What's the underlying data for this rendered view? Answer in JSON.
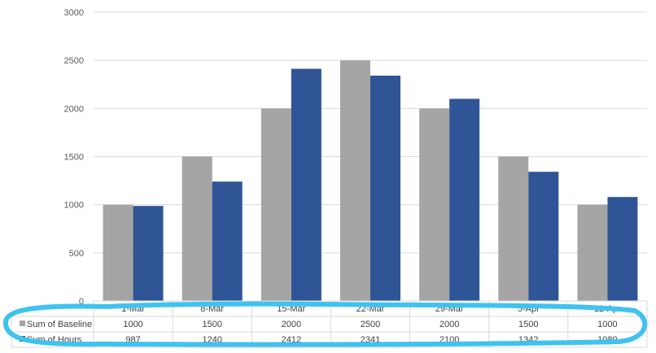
{
  "chart_data": {
    "type": "bar",
    "categories": [
      "1-Mar",
      "8-Mar",
      "15-Mar",
      "22-Mar",
      "29-Mar",
      "5-Apr",
      "12-Apr"
    ],
    "series": [
      {
        "name": "Sum of Baseline",
        "color": "#a5a5a5",
        "values": [
          1000,
          1500,
          2000,
          2500,
          2000,
          1500,
          1000
        ]
      },
      {
        "name": "Sum of Hours",
        "color": "#2f5597",
        "values": [
          987,
          1240,
          2412,
          2341,
          2100,
          1342,
          1080
        ]
      }
    ],
    "yticks": [
      "0",
      "500",
      "1000",
      "1500",
      "2000",
      "2500",
      "3000"
    ],
    "ylim": [
      0,
      3000
    ],
    "grid": true,
    "legend": "data table",
    "title": "",
    "xlabel": "",
    "ylabel": ""
  },
  "annotation": {
    "shape": "hand-drawn loop around data table",
    "color": "#3fc3ee"
  }
}
